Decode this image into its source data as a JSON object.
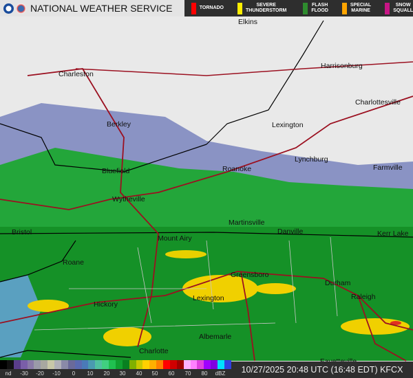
{
  "header": {
    "title": "NATIONAL WEATHER SERVICE",
    "logos": [
      "noaa-logo",
      "nws-logo"
    ]
  },
  "warnings": [
    {
      "label": "TORNADO",
      "color": "#ff0000"
    },
    {
      "label": "SEVERE\nTHUNDERSTORM",
      "color": "#ffee00"
    },
    {
      "label": "FLASH\nFLOOD",
      "color": "#2e8b2e"
    },
    {
      "label": "SPECIAL\nMARINE",
      "color": "#ffa500"
    },
    {
      "label": "SNOW\nSQUALL",
      "color": "#c71585"
    }
  ],
  "cities": [
    "Elkins",
    "Charleston",
    "Harrisonburg",
    "Charlottesville",
    "Berkley",
    "Lexington",
    "Lynchburg",
    "Bluefield",
    "Roanoke",
    "Farmville",
    "Wytheville",
    "Martinsville",
    "Danville",
    "Kerr Lake",
    "Bristol",
    "Mount Airy",
    "Roane",
    "Greensboro",
    "Durham",
    "Raleigh",
    "Hickory",
    "Lexington",
    "Albemarle",
    "Charlotte",
    "Fayetteville"
  ],
  "legend": {
    "labels": [
      "nd",
      "-30",
      "-20",
      "-10",
      "0",
      "10",
      "20",
      "30",
      "40",
      "50",
      "60",
      "70",
      "80",
      "dBZ"
    ],
    "colors": [
      "#000000",
      "#111111",
      "#5a3e8a",
      "#7a5ea8",
      "#8a7aa8",
      "#9a9aa8",
      "#a8a8a0",
      "#c8c8a8",
      "#b0b0b8",
      "#8a8aa8",
      "#6a6a9a",
      "#5a6ab0",
      "#4a7ab8",
      "#4a9ab0",
      "#50c0a0",
      "#40d080",
      "#20c050",
      "#10a030",
      "#088020",
      "#80b000",
      "#c8c800",
      "#ffd000",
      "#ffb000",
      "#ff8000",
      "#ff0000",
      "#d00000",
      "#a00000",
      "#ffb0ff",
      "#ff80ff",
      "#e040e0",
      "#a000ff",
      "#8000e0",
      "#00e0ff",
      "#3040e0"
    ]
  },
  "status": "10/27/2025 20:48 UTC (16:48 EDT) KFCX"
}
